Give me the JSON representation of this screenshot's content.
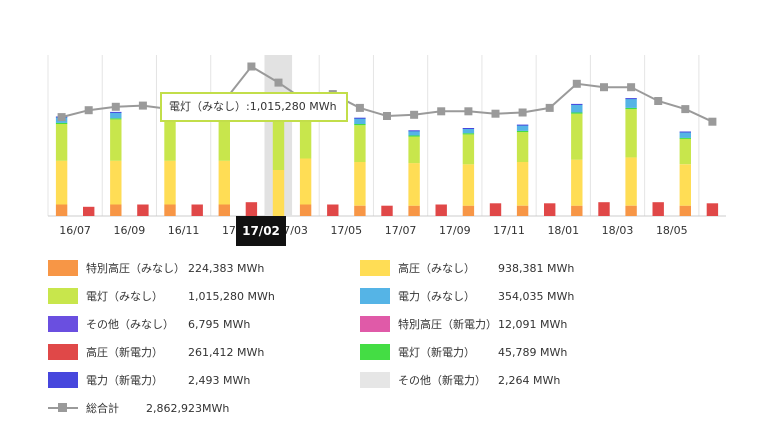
{
  "chart_data": {
    "type": "bar",
    "stacked": true,
    "categories": [
      "16/06",
      "16/07",
      "16/08",
      "16/09",
      "16/10",
      "16/11",
      "16/12",
      "17/01",
      "17/02",
      "17/03",
      "17/04",
      "17/05",
      "17/06",
      "17/07",
      "17/08",
      "17/09",
      "17/10",
      "17/11",
      "17/12",
      "18/01",
      "18/02",
      "18/03",
      "18/04",
      "18/05",
      "18/06"
    ],
    "x_tick_labels": [
      "16/07",
      "16/09",
      "16/11",
      "17/01",
      "17/03",
      "17/05",
      "17/07",
      "17/09",
      "17/11",
      "18/01",
      "18/03",
      "18/05"
    ],
    "highlighted_category": "17/02",
    "legend": [
      {
        "name": "特別高圧（みなし）",
        "value": "224,383 MWh",
        "color": "#f79646"
      },
      {
        "name": "高圧（みなし）",
        "value": "938,381 MWh",
        "color": "#ffdd55"
      },
      {
        "name": "電灯（みなし）",
        "value": "1,015,280 MWh",
        "color": "#c8e64c"
      },
      {
        "name": "電力（みなし）",
        "value": "354,035 MWh",
        "color": "#55b4e6"
      },
      {
        "name": "その他（みなし）",
        "value": "6,795 MWh",
        "color": "#6a4fe0"
      },
      {
        "name": "特別高圧（新電力）",
        "value": "12,091 MWh",
        "color": "#e05aa8"
      },
      {
        "name": "高圧（新電力）",
        "value": "261,412 MWh",
        "color": "#e04848"
      },
      {
        "name": "電灯（新電力）",
        "value": "45,789 MWh",
        "color": "#44dd44"
      },
      {
        "name": "電力（新電力）",
        "value": "2,493 MWh",
        "color": "#4646dd"
      },
      {
        "name": "その他（新電力）",
        "value": "2,264 MWh",
        "color": "#e6e6e6"
      },
      {
        "name": "総合計",
        "value": "2,862,923MWh",
        "color": "#9a9a9a",
        "line": true
      }
    ],
    "tooltip": {
      "label": "電灯（みなし）",
      "value": "1,015,280 MWh"
    },
    "ylim": [
      0,
      140
    ],
    "series_order": [
      "特別高圧（みなし）",
      "高圧（新電力）",
      "高圧（みなし）",
      "電灯（みなし）",
      "電灯（新電力）",
      "電力（みなし）",
      "電力（新電力）"
    ],
    "stacks": [
      {
        "sp": 10,
        "hn": 0,
        "hp": 38,
        "dl": 32,
        "dn": 1,
        "pw": 5,
        "pn": 0.5,
        "total": 86
      },
      {
        "sp": 0,
        "hn": 8,
        "hp": 0,
        "dl": 0,
        "dn": 0,
        "pw": 0,
        "pn": 0,
        "total": 92
      },
      {
        "sp": 10,
        "hn": 0,
        "hp": 38,
        "dl": 36,
        "dn": 1,
        "pw": 5,
        "pn": 0.5,
        "total": 95
      },
      {
        "sp": 0,
        "hn": 10,
        "hp": 0,
        "dl": 0,
        "dn": 0,
        "pw": 0,
        "pn": 0,
        "total": 96
      },
      {
        "sp": 10,
        "hn": 0,
        "hp": 38,
        "dl": 36,
        "dn": 1,
        "pw": 5,
        "pn": 0.5,
        "total": 93
      },
      {
        "sp": 0,
        "hn": 10,
        "hp": 0,
        "dl": 0,
        "dn": 0,
        "pw": 0,
        "pn": 0,
        "total": 95
      },
      {
        "sp": 10,
        "hn": 0,
        "hp": 38,
        "dl": 38,
        "dn": 1,
        "pw": 5,
        "pn": 0.5,
        "total": 100
      },
      {
        "sp": 0,
        "hn": 12,
        "hp": 0,
        "dl": 0,
        "dn": 0,
        "pw": 0,
        "pn": 0,
        "total": 130
      },
      {
        "sp": 0,
        "hn": 0,
        "hp": 40,
        "dl": 50,
        "dn": 0,
        "pw": 0,
        "pn": 0,
        "total": 116
      },
      {
        "sp": 10,
        "hn": 0,
        "hp": 40,
        "dl": 38,
        "dn": 1,
        "pw": 6,
        "pn": 0.5,
        "total": 100
      },
      {
        "sp": 0,
        "hn": 10,
        "hp": 0,
        "dl": 0,
        "dn": 0,
        "pw": 0,
        "pn": 0,
        "total": 106
      },
      {
        "sp": 9,
        "hn": 0,
        "hp": 38,
        "dl": 32,
        "dn": 1,
        "pw": 5,
        "pn": 0.5,
        "total": 94
      },
      {
        "sp": 0,
        "hn": 9,
        "hp": 0,
        "dl": 0,
        "dn": 0,
        "pw": 0,
        "pn": 0,
        "total": 87
      },
      {
        "sp": 9,
        "hn": 0,
        "hp": 37,
        "dl": 23,
        "dn": 1,
        "pw": 4,
        "pn": 0.5,
        "total": 88
      },
      {
        "sp": 0,
        "hn": 10,
        "hp": 0,
        "dl": 0,
        "dn": 0,
        "pw": 0,
        "pn": 0,
        "total": 91
      },
      {
        "sp": 9,
        "hn": 0,
        "hp": 36,
        "dl": 26,
        "dn": 1,
        "pw": 4,
        "pn": 0.5,
        "total": 91
      },
      {
        "sp": 0,
        "hn": 11,
        "hp": 0,
        "dl": 0,
        "dn": 0,
        "pw": 0,
        "pn": 0,
        "total": 89
      },
      {
        "sp": 9,
        "hn": 0,
        "hp": 38,
        "dl": 26,
        "dn": 1,
        "pw": 5,
        "pn": 0.5,
        "total": 90
      },
      {
        "sp": 0,
        "hn": 11,
        "hp": 0,
        "dl": 0,
        "dn": 0,
        "pw": 0,
        "pn": 0,
        "total": 94
      },
      {
        "sp": 9,
        "hn": 0,
        "hp": 40,
        "dl": 40,
        "dn": 1,
        "pw": 7,
        "pn": 0.5,
        "total": 115
      },
      {
        "sp": 0,
        "hn": 12,
        "hp": 0,
        "dl": 0,
        "dn": 0,
        "pw": 0,
        "pn": 0,
        "total": 112
      },
      {
        "sp": 9,
        "hn": 0,
        "hp": 42,
        "dl": 42,
        "dn": 1,
        "pw": 8,
        "pn": 0.5,
        "total": 112
      },
      {
        "sp": 0,
        "hn": 12,
        "hp": 0,
        "dl": 0,
        "dn": 0,
        "pw": 0,
        "pn": 0,
        "total": 100
      },
      {
        "sp": 9,
        "hn": 0,
        "hp": 36,
        "dl": 22,
        "dn": 1,
        "pw": 5,
        "pn": 0.5,
        "total": 93
      },
      {
        "sp": 0,
        "hn": 11,
        "hp": 0,
        "dl": 0,
        "dn": 0,
        "pw": 0,
        "pn": 0,
        "total": 82
      }
    ]
  }
}
